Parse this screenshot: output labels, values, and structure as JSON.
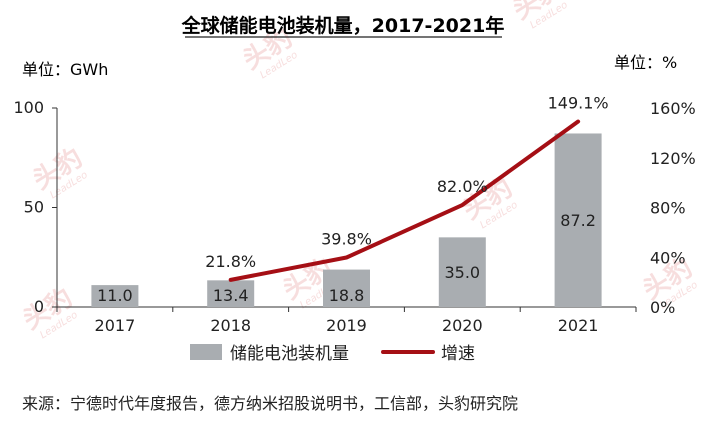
{
  "chart_data": {
    "type": "bar",
    "title": "全球储能电池装机量，2017-2021年",
    "left_unit": "单位：GWh",
    "right_unit": "单位：%",
    "categories": [
      "2017",
      "2018",
      "2019",
      "2020",
      "2021"
    ],
    "series": [
      {
        "name": "储能电池装机量",
        "kind": "bar",
        "axis": "left",
        "color": "#a9adb1",
        "values": [
          11.0,
          13.4,
          18.8,
          35.0,
          87.2
        ],
        "labels": [
          "11.0",
          "13.4",
          "18.8",
          "35.0",
          "87.2"
        ]
      },
      {
        "name": "增速",
        "kind": "line",
        "axis": "right",
        "color": "#a50f15",
        "values": [
          null,
          21.8,
          39.8,
          82.0,
          149.1
        ],
        "labels": [
          "",
          "21.8%",
          "39.8%",
          "82.0%",
          "149.1%"
        ]
      }
    ],
    "y_left": {
      "ylim": [
        0,
        100
      ],
      "ticks": [
        "0",
        "50",
        "100"
      ],
      "tick_values": [
        0,
        50,
        100
      ]
    },
    "y_right": {
      "ylim": [
        0,
        160
      ],
      "ticks": [
        "0%",
        "40%",
        "80%",
        "120%",
        "160%"
      ],
      "tick_values": [
        0,
        40,
        80,
        120,
        160
      ]
    },
    "legend_position": "bottom"
  },
  "source": "来源：宁德时代年度报告，德方纳米招股说明书，工信部，头豹研究院",
  "watermark": {
    "brand": "头豹",
    "latin": "LeadLeo"
  }
}
